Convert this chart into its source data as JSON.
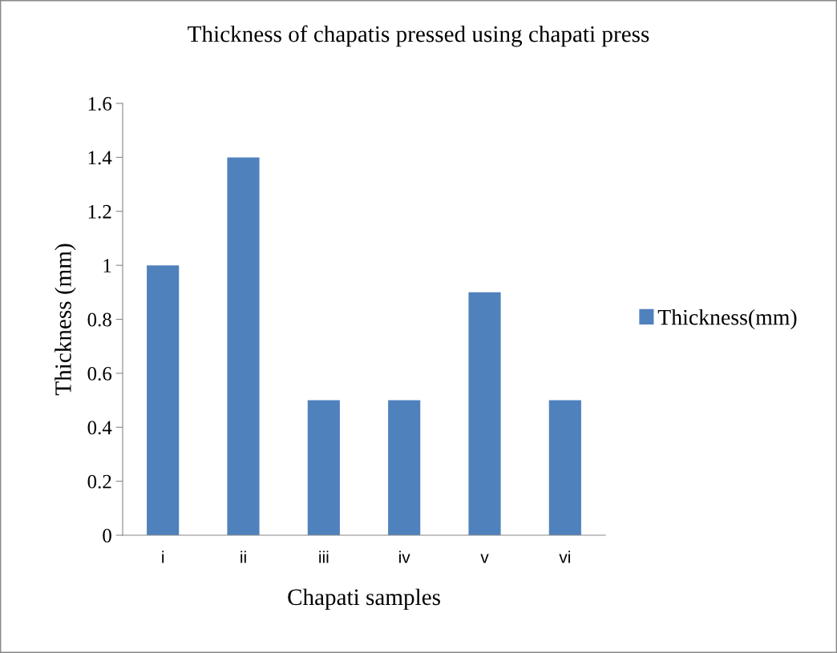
{
  "chart_data": {
    "type": "bar",
    "title": "Thickness of chapatis pressed using chapati press",
    "xlabel": "Chapati samples",
    "ylabel": "Thickness (mm)",
    "categories": [
      "i",
      "ii",
      "iii",
      "iv",
      "v",
      "vi"
    ],
    "series": [
      {
        "name": "Thickness(mm)",
        "color": "#4f81bd",
        "values": [
          1.0,
          1.4,
          0.5,
          0.5,
          0.9,
          0.5
        ]
      }
    ],
    "ylim": [
      0,
      1.6
    ],
    "yticks": [
      0,
      0.2,
      0.4,
      0.6,
      0.8,
      1,
      1.2,
      1.4,
      1.6
    ],
    "grid": false,
    "legend": "right"
  }
}
